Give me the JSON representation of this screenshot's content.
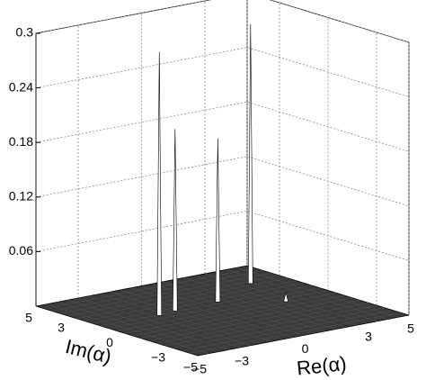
{
  "chart_data": {
    "type": "surface3d",
    "xlabel": "Re(α)",
    "ylabel": "Im(α)",
    "xlim": [
      -5,
      5
    ],
    "ylim": [
      -5,
      5
    ],
    "zlim": [
      0,
      0.3
    ],
    "xticks": [
      {
        "value": -5,
        "label": "−5"
      },
      {
        "value": -3,
        "label": "−3"
      },
      0,
      3,
      5
    ],
    "yticks": [
      5,
      3,
      0,
      {
        "value": -3,
        "label": "−3"
      },
      {
        "value": -5,
        "label": "−5"
      }
    ],
    "zticks": [
      0.06,
      0.12,
      0.18,
      0.24,
      0.3
    ],
    "grid": true,
    "peaks": {
      "re": [
        -2.3,
        -1.4,
        0.7,
        3.4,
        2.7
      ],
      "im": [
        0.9,
        1.1,
        1.2,
        2.7,
        -0.4
      ],
      "z": [
        0.29,
        0.2,
        0.18,
        0.285,
        0.01
      ]
    },
    "surface_color": "#3a3a3a"
  }
}
